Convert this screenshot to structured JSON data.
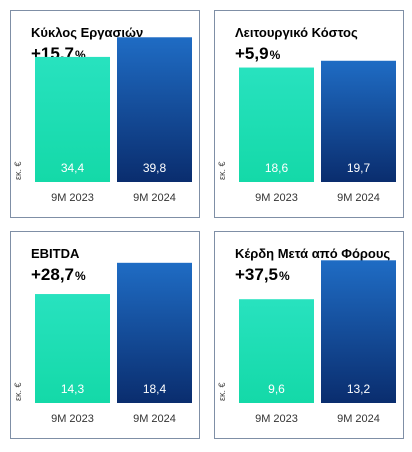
{
  "chart_data": [
    {
      "type": "bar",
      "title": "Κύκλος Εργασιών",
      "change": "+15,7",
      "change_unit": "%",
      "ylabel": "εκ. €",
      "categories": [
        "9M 2023",
        "9M 2024"
      ],
      "values": [
        34.4,
        39.8
      ],
      "value_labels": [
        "34,4",
        "39,8"
      ],
      "colors": [
        "#1de0b4",
        "#1a4fa3"
      ],
      "ylim": [
        0,
        44
      ]
    },
    {
      "type": "bar",
      "title": "Λειτουργικό Κόστος",
      "change": "+5,9",
      "change_unit": "%",
      "ylabel": "εκ. €",
      "categories": [
        "9M 2023",
        "9M 2024"
      ],
      "values": [
        18.6,
        19.7
      ],
      "value_labels": [
        "18,6",
        "19,7"
      ],
      "colors": [
        "#1de0b4",
        "#1a4fa3"
      ],
      "ylim": [
        0,
        26
      ]
    },
    {
      "type": "bar",
      "title": "EBITDA",
      "change": "+28,7",
      "change_unit": "%",
      "ylabel": "εκ. €",
      "categories": [
        "9M 2023",
        "9M 2024"
      ],
      "values": [
        14.3,
        18.4
      ],
      "value_labels": [
        "14,3",
        "18,4"
      ],
      "colors": [
        "#1de0b4",
        "#1a4fa3"
      ],
      "ylim": [
        0,
        21
      ]
    },
    {
      "type": "bar",
      "title": "Κέρδη Μετά από Φόρους",
      "change": "+37,5",
      "change_unit": "%",
      "ylabel": "εκ. €",
      "categories": [
        "9M 2023",
        "9M 2024"
      ],
      "values": [
        9.6,
        13.2
      ],
      "value_labels": [
        "9,6",
        "13,2"
      ],
      "colors": [
        "#1de0b4",
        "#1a4fa3"
      ],
      "ylim": [
        0,
        14.8
      ]
    }
  ]
}
